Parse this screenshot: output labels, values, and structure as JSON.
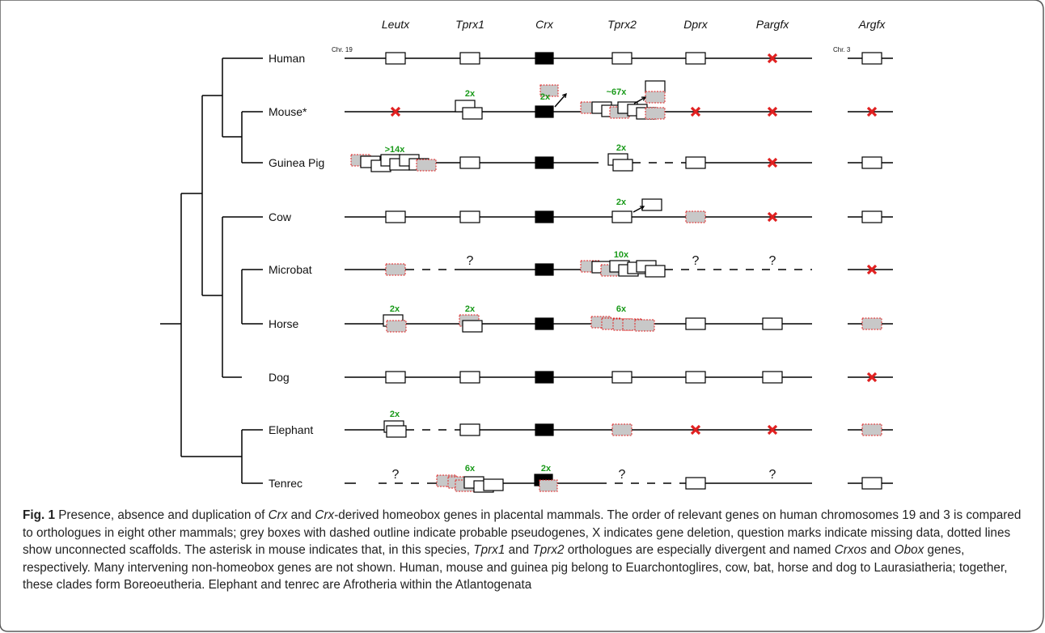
{
  "genes": [
    "Leutx",
    "Tprx1",
    "Crx",
    "Tprx2",
    "Dprx",
    "Pargfx",
    "Argfx"
  ],
  "species": [
    "Human",
    "Mouse*",
    "Guinea Pig",
    "Cow",
    "Microbat",
    "Horse",
    "Dog",
    "Elephant",
    "Tenrec"
  ],
  "chromosome_labels": {
    "chr19": "Chr. 19",
    "chr3": "Chr. 3"
  },
  "copy_labels": {
    "mouse_tprx1": "2x",
    "mouse_crx": "2x",
    "mouse_tprx2": "~67x",
    "guineapig_leutx": ">14x",
    "guineapig_tprx2": "2x",
    "cow_tprx2": "2x",
    "microbat_tprx2": "10x",
    "horse_leutx": "2x",
    "horse_tprx1": "2x",
    "horse_tprx2": "6x",
    "elephant_leutx": "2x",
    "tenrec_tprx1": "6x",
    "tenrec_crx": "2x"
  },
  "missing_mark": "?",
  "caption": {
    "label": "Fig. 1",
    "parts": [
      " Presence, absence and duplication of ",
      "Crx",
      " and ",
      "Crx",
      "-derived homeobox genes in placental mammals. The order of relevant genes on human chromosomes 19 and 3 is compared to orthologues in eight other mammals; grey boxes with dashed outline indicate probable pseudogenes, X indicates gene deletion, question marks indicate missing data, dotted lines show unconnected scaffolds. The asterisk in mouse indicates that, in this species, ",
      "Tprx1",
      " and ",
      "Tprx2",
      " orthologues are especially divergent and named ",
      "Crxos",
      " and ",
      "Obox",
      " genes, respectively. Many intervening non-homeobox genes are not shown. Human, mouse and guinea pig belong to Euarchontoglires, cow, bat, horse and dog to Laurasiatheria; together, these clades form Boreoeutheria. Elephant and tenrec are Afrotheria within the Atlantogenata"
    ]
  },
  "colors": {
    "frame": "#5a5a5a",
    "line": "#000000",
    "crx_box": "#000000",
    "pseudo_fill": "#c8c8c8",
    "pseudo_outline": "#e02020",
    "deletion": "#e02020",
    "copy_label": "#1a9a1a"
  }
}
